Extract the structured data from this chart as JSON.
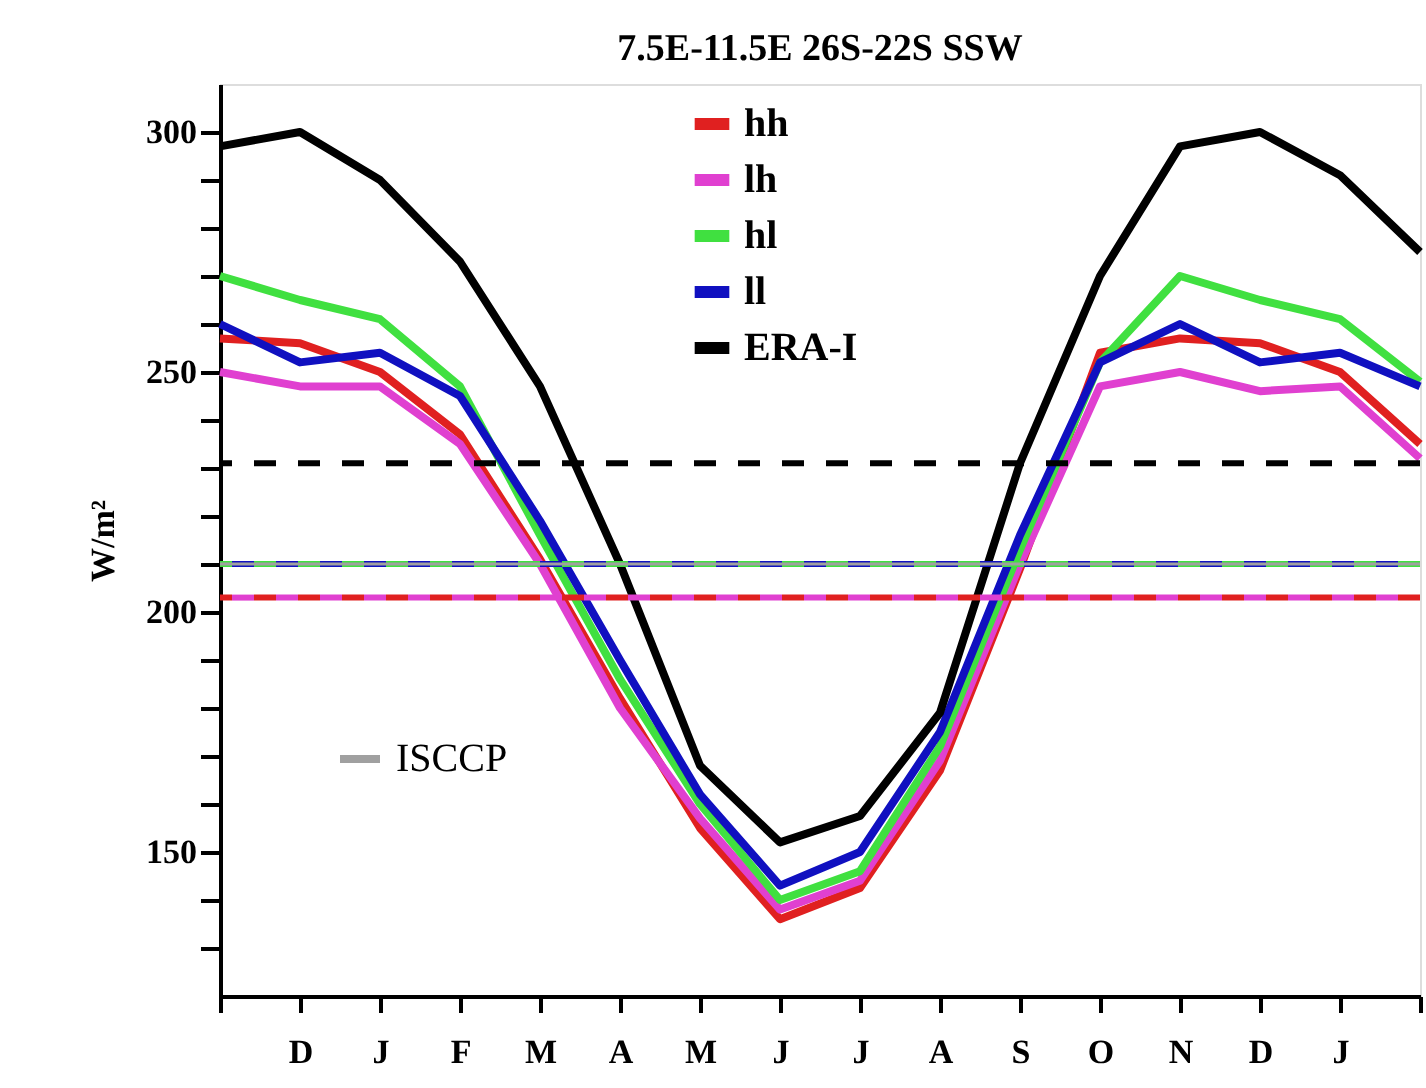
{
  "chart_data": {
    "type": "line",
    "title": "7.5E-11.5E 26S-22S SSW",
    "ylabel": "W/m²",
    "categories": [
      null,
      "D",
      "J",
      "F",
      "M",
      "A",
      "M",
      "J",
      "J",
      "A",
      "S",
      "O",
      "N",
      "D",
      "J",
      null
    ],
    "series": [
      {
        "name": "hh",
        "color": "#e02020",
        "values": [
          257,
          256,
          250,
          237,
          211,
          182,
          155,
          136,
          142.5,
          167,
          209,
          254,
          257,
          256,
          250,
          235
        ]
      },
      {
        "name": "lh",
        "color": "#e040d0",
        "values": [
          250,
          247,
          247,
          235,
          210,
          180,
          157,
          138,
          144,
          169,
          210,
          247,
          250,
          246,
          247,
          232
        ]
      },
      {
        "name": "hl",
        "color": "#40e040",
        "values": [
          270,
          265,
          261,
          247,
          216,
          186,
          160,
          140,
          146,
          172,
          213,
          252,
          270,
          265,
          261,
          248
        ]
      },
      {
        "name": "ll",
        "color": "#1010c0",
        "values": [
          260,
          252,
          254,
          245,
          219,
          190,
          162,
          143,
          150,
          175,
          216,
          252,
          260,
          252,
          254,
          247
        ]
      },
      {
        "name": "ERA-I",
        "color": "#000000",
        "values": [
          297,
          300,
          290,
          273,
          247,
          210,
          168,
          152,
          157.5,
          179,
          231,
          270,
          297,
          300,
          291,
          275
        ]
      }
    ],
    "ref_lines": [
      {
        "axis": "y",
        "value": 231,
        "color": "#000000",
        "line_style": "dashed"
      },
      {
        "axis": "y",
        "value": 210,
        "color": "#40e040",
        "line_style": "dashed"
      },
      {
        "axis": "y",
        "value": 210,
        "color": "#1010c0",
        "line_style": "dashed"
      },
      {
        "axis": "y",
        "value": 203,
        "color": "#e02020",
        "line_style": "dashed"
      },
      {
        "axis": "y",
        "value": 203,
        "color": "#e040d0",
        "line_style": "dashed"
      },
      {
        "axis": "y",
        "value": 210,
        "color": "#a0a0a0",
        "line_style": "solid",
        "label": "ISCCP"
      }
    ],
    "ylim": [
      120,
      310
    ],
    "yticks": [
      {
        "value": 130,
        "label": null
      },
      {
        "value": 140,
        "label": null
      },
      150,
      {
        "value": 160,
        "label": null
      },
      {
        "value": 170,
        "label": null
      },
      {
        "value": 180,
        "label": null
      },
      {
        "value": 190,
        "label": null
      },
      200,
      {
        "value": 210,
        "label": null
      },
      {
        "value": 220,
        "label": null
      },
      {
        "value": 230,
        "label": null
      },
      {
        "value": 240,
        "label": null
      },
      250,
      {
        "value": 260,
        "label": null
      },
      {
        "value": 270,
        "label": null
      },
      {
        "value": 280,
        "label": null
      },
      {
        "value": 290,
        "label": null
      },
      300
    ],
    "legend": "top",
    "grid": false,
    "marker": "none",
    "line_style": "solid"
  }
}
